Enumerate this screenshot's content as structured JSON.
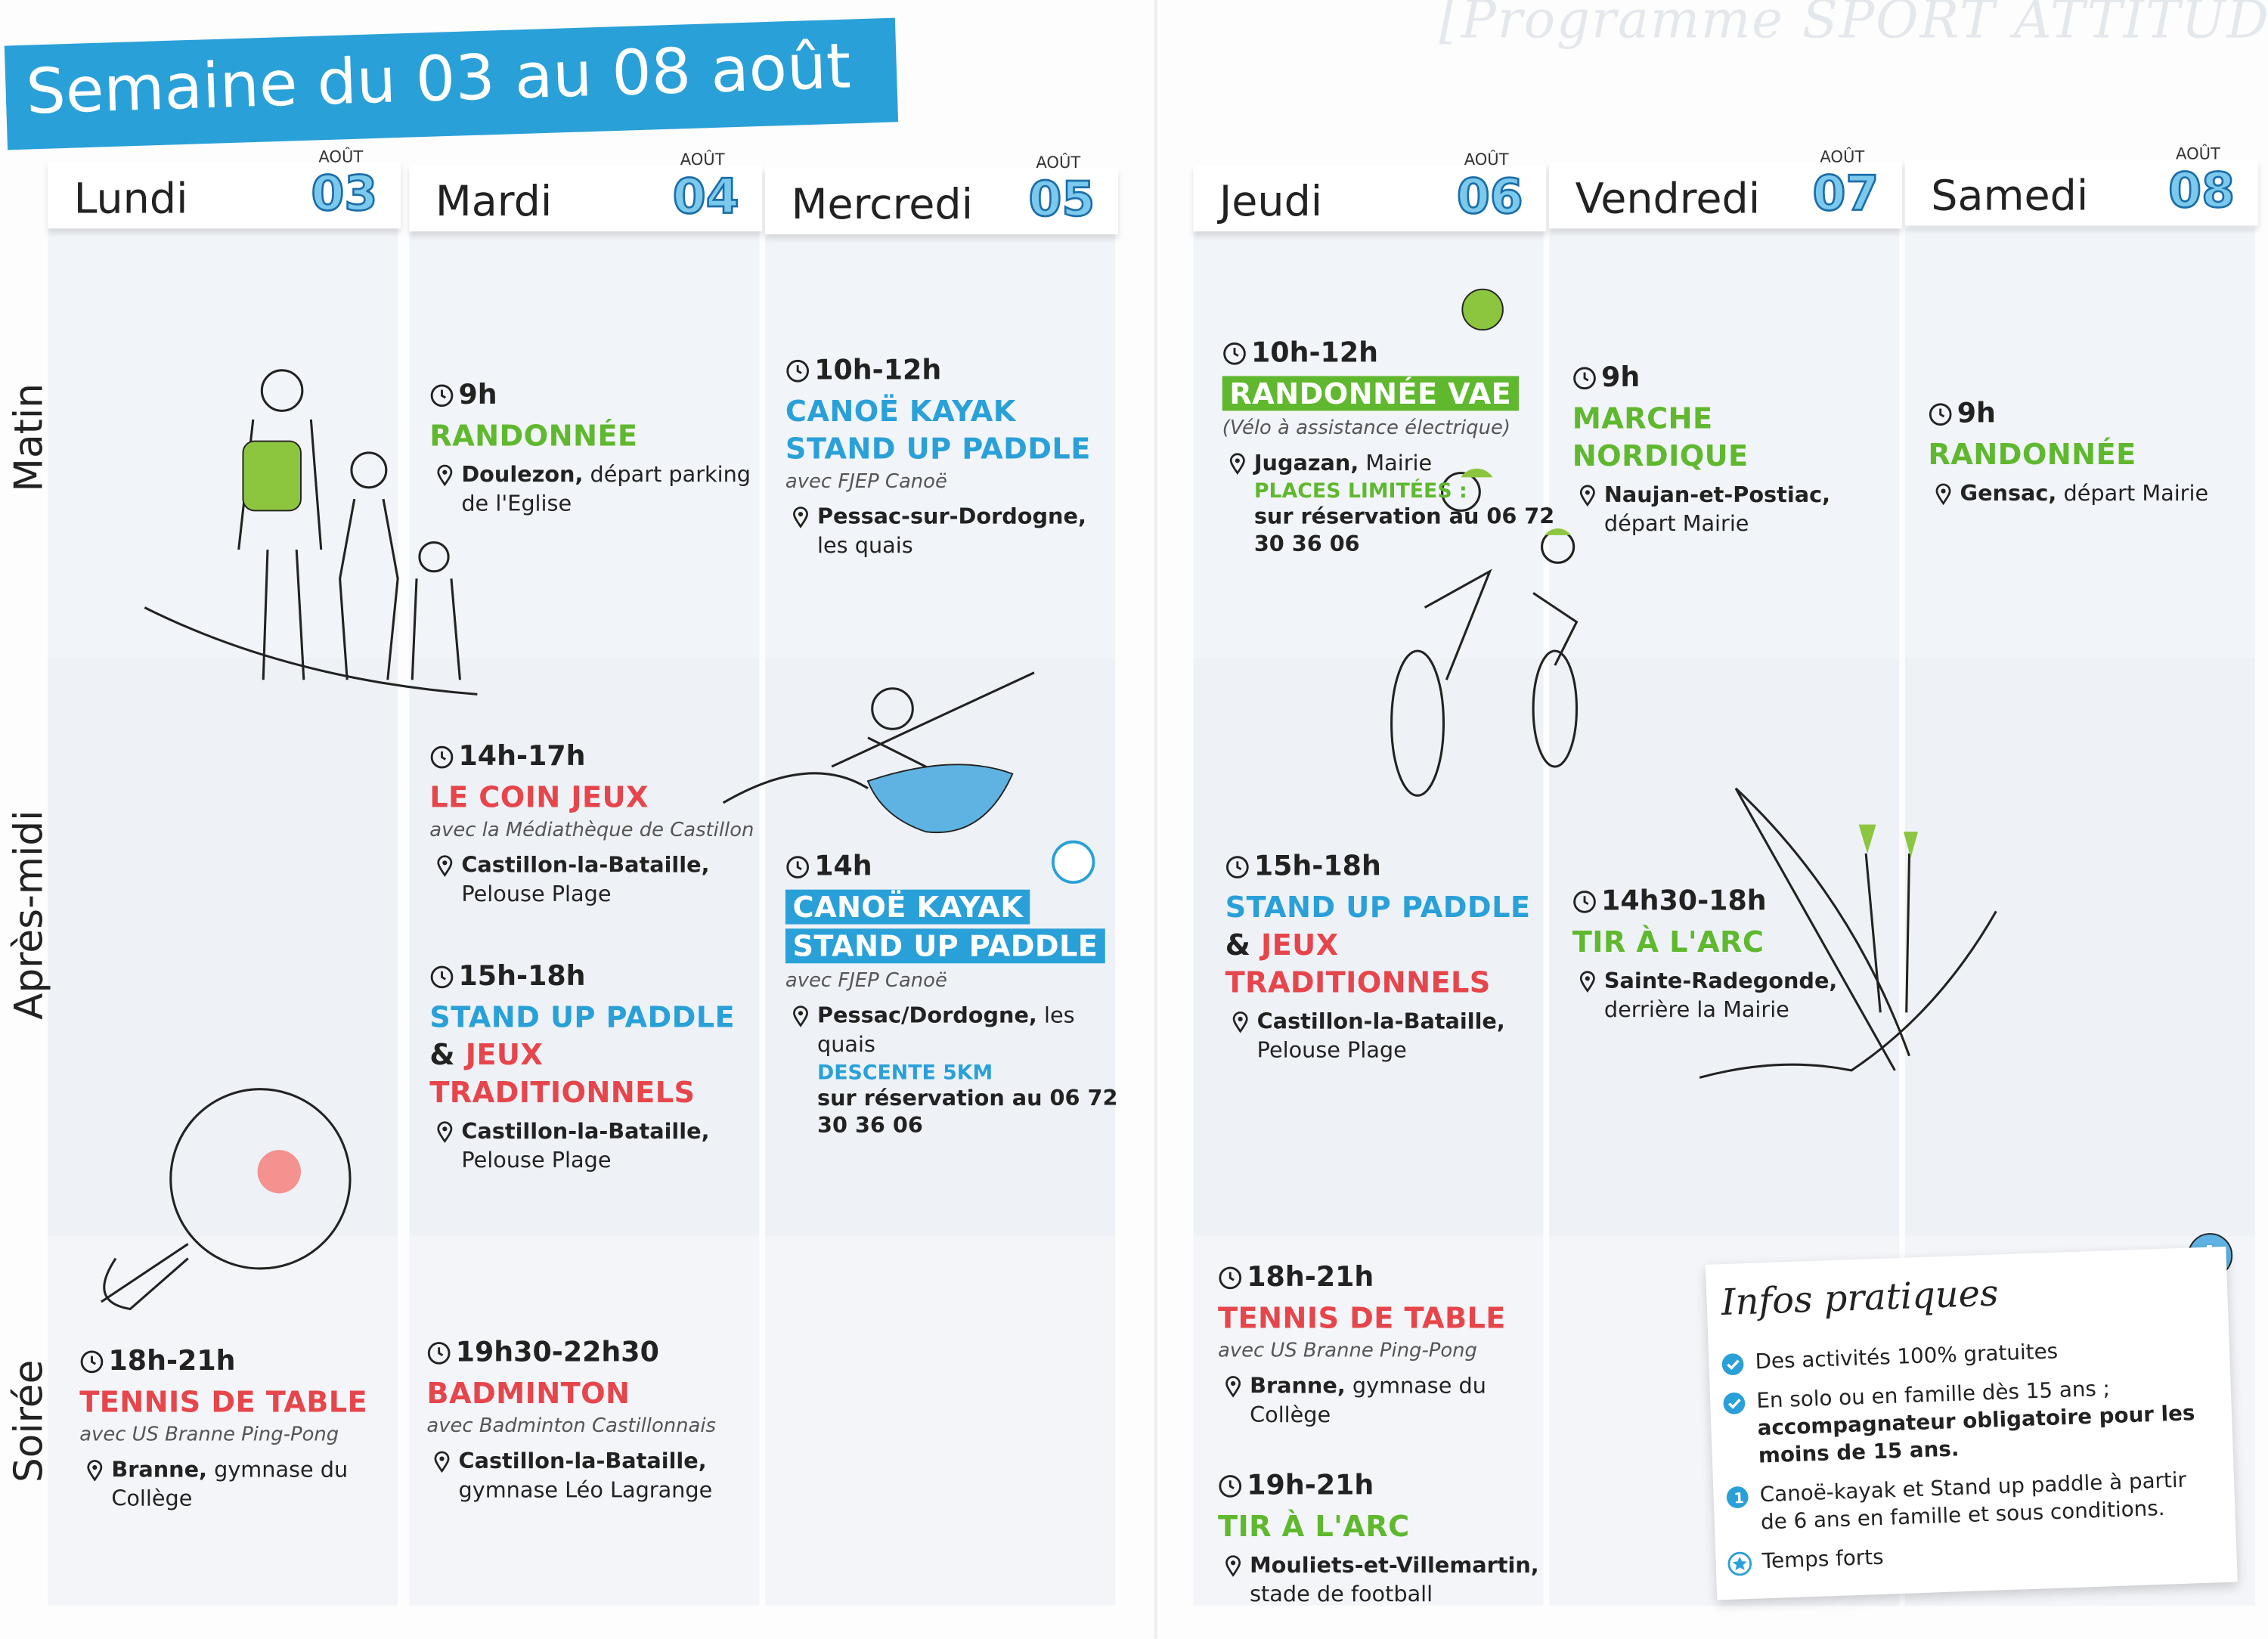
{
  "header": {
    "title": "Semaine du 03 au 08 août",
    "programme": "[Programme SPORT ATTITUDE]"
  },
  "days": [
    {
      "name": "Lundi",
      "month": "AOÛT",
      "num": "03"
    },
    {
      "name": "Mardi",
      "month": "AOÛT",
      "num": "04"
    },
    {
      "name": "Mercredi",
      "month": "AOÛT",
      "num": "05"
    },
    {
      "name": "Jeudi",
      "month": "AOÛT",
      "num": "06"
    },
    {
      "name": "Vendredi",
      "month": "AOÛT",
      "num": "07"
    },
    {
      "name": "Samedi",
      "month": "AOÛT",
      "num": "08"
    }
  ],
  "periods": [
    "Matin",
    "Après-midi",
    "Soirée"
  ],
  "events": [
    {
      "time": "18h-21h",
      "lines": [
        [
          {
            "text": "TENNIS DE TABLE",
            "color": "red"
          }
        ]
      ],
      "note": "avec US Branne Ping-Pong",
      "place": "Branne,",
      "place_rest": "gymnase du Collège"
    },
    {
      "time": "9h",
      "lines": [
        [
          {
            "text": "RANDONNÉE",
            "color": "green"
          }
        ]
      ],
      "place": "Doulezon,",
      "place_rest": "départ parking de l'Eglise"
    },
    {
      "time": "14h-17h",
      "lines": [
        [
          {
            "text": "LE COIN JEUX",
            "color": "red"
          }
        ]
      ],
      "note": "avec la Médiathèque de Castillon",
      "place": "Castillon-la-Bataille,",
      "place_rest": "Pelouse Plage"
    },
    {
      "time": "15h-18h",
      "lines": [
        [
          {
            "text": "STAND UP PADDLE",
            "color": "blue"
          }
        ],
        [
          {
            "text": "& ",
            "color": "dark"
          },
          {
            "text": "JEUX",
            "color": "red"
          }
        ],
        [
          {
            "text": "TRADITIONNELS",
            "color": "red"
          }
        ]
      ],
      "place": "Castillon-la-Bataille,",
      "place_rest": "Pelouse Plage"
    },
    {
      "time": "19h30-22h30",
      "lines": [
        [
          {
            "text": "BADMINTON",
            "color": "red"
          }
        ]
      ],
      "note": "avec Badminton Castillonnais",
      "place": "Castillon-la-Bataille,",
      "place_rest": "gymnase Léo Lagrange"
    },
    {
      "time": "10h-12h",
      "lines": [
        [
          {
            "text": "CANOË KAYAK",
            "color": "blue"
          }
        ],
        [
          {
            "text": "STAND UP PADDLE",
            "color": "blue"
          }
        ]
      ],
      "note": "avec FJEP Canoë",
      "place": "Pessac-sur-Dordogne,",
      "place_rest": "les quais"
    },
    {
      "time": "14h",
      "boxed": true,
      "lines": [
        [
          {
            "text": "CANOË KAYAK",
            "color": "blue"
          }
        ],
        [
          {
            "text": "STAND UP PADDLE",
            "color": "blue"
          }
        ]
      ],
      "note": "avec FJEP Canoë",
      "place": "Pessac/Dordogne,",
      "place_rest": "les quais",
      "extra_label": "DESCENTE 5KM",
      "extra_color": "blue",
      "extra": "sur réservation au 06 72 30 36 06"
    },
    {
      "time": "10h-12h",
      "boxed": true,
      "lines": [
        [
          {
            "text": "RANDONNÉE VAE",
            "color": "green"
          }
        ]
      ],
      "note": "(Vélo à assistance électrique)",
      "place": "Jugazan,",
      "place_rest": "Mairie",
      "extra_label": "PLACES LIMITÉES :",
      "extra_color": "green",
      "extra": "sur réservation au 06 72 30 36 06"
    },
    {
      "time": "15h-18h",
      "lines": [
        [
          {
            "text": "STAND UP PADDLE",
            "color": "blue"
          }
        ],
        [
          {
            "text": "& ",
            "color": "dark"
          },
          {
            "text": "JEUX",
            "color": "red"
          }
        ],
        [
          {
            "text": "TRADITIONNELS",
            "color": "red"
          }
        ]
      ],
      "place": "Castillon-la-Bataille,",
      "place_rest": "Pelouse Plage"
    },
    {
      "time": "18h-21h",
      "lines": [
        [
          {
            "text": "TENNIS DE TABLE",
            "color": "red"
          }
        ]
      ],
      "note": "avec US Branne Ping-Pong",
      "place": "Branne,",
      "place_rest": "gymnase du Collège"
    },
    {
      "time": "19h-21h",
      "lines": [
        [
          {
            "text": "TIR À L'ARC",
            "color": "green"
          }
        ]
      ],
      "place": "Mouliets-et-Villemartin,",
      "place_rest": "stade de football"
    },
    {
      "time": "9h",
      "lines": [
        [
          {
            "text": "MARCHE",
            "color": "green"
          }
        ],
        [
          {
            "text": "NORDIQUE",
            "color": "green"
          }
        ]
      ],
      "place": "Naujan-et-Postiac,",
      "place_rest": "départ Mairie"
    },
    {
      "time": "14h30-18h",
      "lines": [
        [
          {
            "text": "TIR À L'ARC",
            "color": "green"
          }
        ]
      ],
      "place": "Sainte-Radegonde,",
      "place_rest": "derrière la Mairie"
    },
    {
      "time": "9h",
      "lines": [
        [
          {
            "text": "RANDONNÉE",
            "color": "green"
          }
        ]
      ],
      "place": "Gensac,",
      "place_rest": "départ Mairie"
    }
  ],
  "infos": {
    "title": "Infos pratiques",
    "items": [
      [
        {
          "text": "Des activités 100% gratuites"
        }
      ],
      [
        {
          "text": "En solo ou en famille dès 15 ans ; "
        },
        {
          "text": "accompagnateur obligatoire pour les moins de 15 ans.",
          "bold": true
        }
      ],
      [
        {
          "text": "Canoë-kayak et Stand up paddle à partir de 6 ans en famille et sous conditions."
        }
      ],
      [
        {
          "text": "Temps forts"
        }
      ]
    ]
  }
}
